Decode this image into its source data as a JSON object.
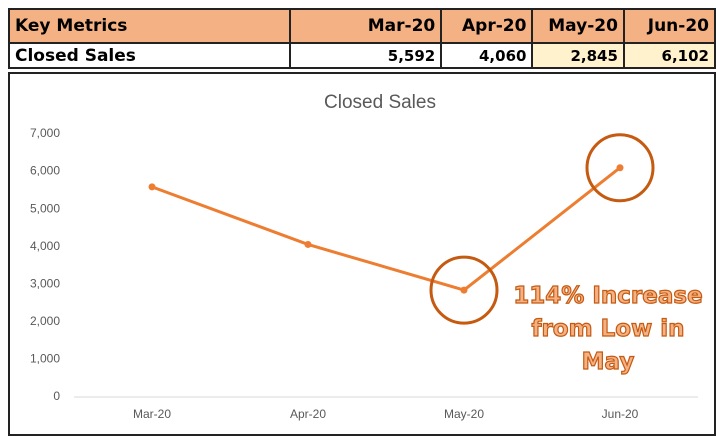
{
  "table": {
    "header": [
      "Key Metrics",
      "Mar-20",
      "Apr-20",
      "May-20",
      "Jun-20"
    ],
    "rows": [
      [
        "Closed Sales",
        "5,592",
        "4,060",
        "2,845",
        "6,102"
      ]
    ]
  },
  "chart_data": {
    "type": "line",
    "title": "Closed Sales",
    "categories": [
      "Mar-20",
      "Apr-20",
      "May-20",
      "Jun-20"
    ],
    "series": [
      {
        "name": "Closed Sales",
        "color": "#ed7d31",
        "values": [
          5592,
          4060,
          2845,
          6102
        ]
      }
    ],
    "ylim": [
      0,
      7000
    ],
    "yticks": [
      0,
      {
        "value": 1000,
        "label": "1,000"
      },
      {
        "value": 2000,
        "label": "2,000"
      },
      {
        "value": 3000,
        "label": "3,000"
      },
      {
        "value": 4000,
        "label": "4,000"
      },
      {
        "value": 5000,
        "label": "5,000"
      },
      {
        "value": 6000,
        "label": "6,000"
      },
      {
        "value": 7000,
        "label": "7,000"
      }
    ],
    "grid": false,
    "annotation": "114% Increase from Low in May"
  }
}
